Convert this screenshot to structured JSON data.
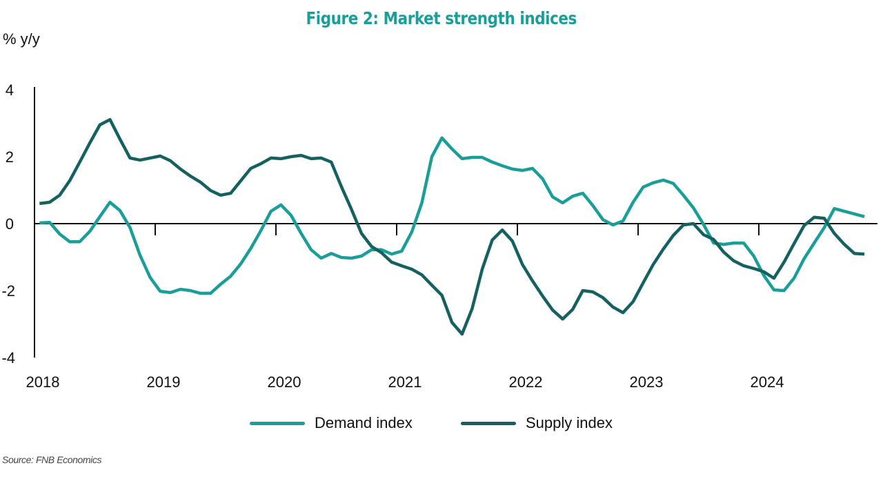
{
  "title": "Figure 2: Market strength indices",
  "source": "Source: FNB Economics",
  "chart_data": {
    "type": "line",
    "title": "Figure 2: Market strength indices",
    "ylabel": "% y/y",
    "xlabel": "",
    "ylim": [
      -4,
      4
    ],
    "yticks": [
      "4",
      "2",
      "0",
      "-2",
      "-4"
    ],
    "ytick_values": [
      4,
      2,
      0,
      -2,
      -4
    ],
    "xticks": [
      "2018",
      "2019",
      "2020",
      "2021",
      "2022",
      "2023",
      "2024"
    ],
    "x_start": "2018-01",
    "frequency": "monthly",
    "grid": false,
    "legend": "bottom-center",
    "series": [
      {
        "name": "Demand index",
        "color": "#1a9e9a",
        "values": [
          0.02,
          0.04,
          -0.31,
          -0.54,
          -0.54,
          -0.23,
          0.21,
          0.64,
          0.39,
          -0.12,
          -0.95,
          -1.61,
          -2.02,
          -2.06,
          -1.96,
          -2.0,
          -2.08,
          -2.08,
          -1.81,
          -1.57,
          -1.2,
          -0.74,
          -0.21,
          0.37,
          0.56,
          0.25,
          -0.29,
          -0.78,
          -1.03,
          -0.89,
          -1.01,
          -1.03,
          -0.97,
          -0.78,
          -0.78,
          -0.91,
          -0.82,
          -0.25,
          0.62,
          2.0,
          2.56,
          2.23,
          1.94,
          1.98,
          1.98,
          1.84,
          1.73,
          1.63,
          1.59,
          1.65,
          1.34,
          0.8,
          0.62,
          0.82,
          0.91,
          0.54,
          0.12,
          -0.04,
          0.08,
          0.64,
          1.09,
          1.22,
          1.3,
          1.2,
          0.85,
          0.47,
          -0.02,
          -0.58,
          -0.62,
          -0.58,
          -0.58,
          -0.97,
          -1.55,
          -1.98,
          -2.0,
          -1.63,
          -1.05,
          -0.58,
          -0.12,
          0.45,
          0.37,
          0.29,
          0.21
        ]
      },
      {
        "name": "Supply index",
        "color": "#156060",
        "values": [
          0.6,
          0.64,
          0.85,
          1.28,
          1.84,
          2.41,
          2.95,
          3.11,
          2.52,
          1.96,
          1.9,
          1.96,
          2.02,
          1.88,
          1.63,
          1.42,
          1.24,
          0.99,
          0.85,
          0.91,
          1.28,
          1.65,
          1.79,
          1.96,
          1.94,
          2.0,
          2.04,
          1.94,
          1.96,
          1.84,
          1.11,
          0.43,
          -0.29,
          -0.68,
          -0.87,
          -1.15,
          -1.26,
          -1.36,
          -1.53,
          -1.84,
          -2.14,
          -2.95,
          -3.3,
          -2.54,
          -1.36,
          -0.49,
          -0.19,
          -0.52,
          -1.22,
          -1.71,
          -2.16,
          -2.58,
          -2.85,
          -2.56,
          -2.0,
          -2.04,
          -2.21,
          -2.49,
          -2.66,
          -2.33,
          -1.77,
          -1.22,
          -0.76,
          -0.35,
          -0.04,
          0.0,
          -0.33,
          -0.47,
          -0.85,
          -1.11,
          -1.26,
          -1.34,
          -1.44,
          -1.63,
          -1.15,
          -0.6,
          -0.06,
          0.19,
          0.16,
          -0.29,
          -0.62,
          -0.89,
          -0.91
        ]
      }
    ]
  }
}
